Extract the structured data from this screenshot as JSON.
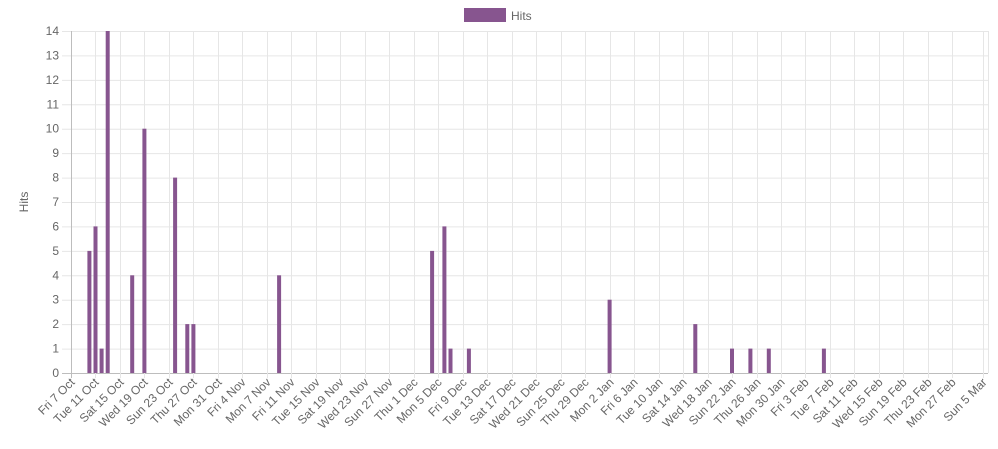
{
  "chart_data": {
    "type": "bar",
    "title": "",
    "xlabel": "",
    "ylabel": "Hits",
    "ylim": [
      0,
      14
    ],
    "y_ticks": [
      0,
      1,
      2,
      3,
      4,
      5,
      6,
      7,
      8,
      9,
      10,
      11,
      12,
      13,
      14
    ],
    "grid": true,
    "legend": {
      "position": "top",
      "entries": [
        {
          "label": "Hits",
          "color": "#87558f"
        }
      ]
    },
    "x_range": [
      "2022-10-07",
      "2023-03-05"
    ],
    "x_tick_labels": [
      "Fri 7 Oct",
      "Tue 11 Oct",
      "Sat 15 Oct",
      "Wed 19 Oct",
      "Sun 23 Oct",
      "Thu 27 Oct",
      "Mon 31 Oct",
      "Fri 4 Nov",
      "Mon 7 Nov",
      "Fri 11 Nov",
      "Tue 15 Nov",
      "Sat 19 Nov",
      "Wed 23 Nov",
      "Sun 27 Nov",
      "Thu 1 Dec",
      "Mon 5 Dec",
      "Fri 9 Dec",
      "Tue 13 Dec",
      "Sat 17 Dec",
      "Wed 21 Dec",
      "Sun 25 Dec",
      "Thu 29 Dec",
      "Mon 2 Jan",
      "Fri 6 Jan",
      "Tue 10 Jan",
      "Sat 14 Jan",
      "Wed 18 Jan",
      "Sun 22 Jan",
      "Thu 26 Jan",
      "Mon 30 Jan",
      "Fri 3 Feb",
      "Tue 7 Feb",
      "Sat 11 Feb",
      "Wed 15 Feb",
      "Sun 19 Feb",
      "Thu 23 Feb",
      "Mon 27 Feb",
      "Sun 5 Mar"
    ],
    "series": [
      {
        "name": "Hits",
        "color": "#87558f",
        "points": [
          {
            "x": "2022-10-10",
            "y": 5
          },
          {
            "x": "2022-10-11",
            "y": 6
          },
          {
            "x": "2022-10-12",
            "y": 1
          },
          {
            "x": "2022-10-13",
            "y": 14
          },
          {
            "x": "2022-10-17",
            "y": 4
          },
          {
            "x": "2022-10-19",
            "y": 10
          },
          {
            "x": "2022-10-24",
            "y": 8
          },
          {
            "x": "2022-10-26",
            "y": 2
          },
          {
            "x": "2022-10-27",
            "y": 2
          },
          {
            "x": "2022-11-10",
            "y": 4
          },
          {
            "x": "2022-12-05",
            "y": 5
          },
          {
            "x": "2022-12-07",
            "y": 6
          },
          {
            "x": "2022-12-08",
            "y": 1
          },
          {
            "x": "2022-12-11",
            "y": 1
          },
          {
            "x": "2023-01-03",
            "y": 3
          },
          {
            "x": "2023-01-17",
            "y": 2
          },
          {
            "x": "2023-01-23",
            "y": 1
          },
          {
            "x": "2023-01-26",
            "y": 1
          },
          {
            "x": "2023-01-29",
            "y": 1
          },
          {
            "x": "2023-02-07",
            "y": 1
          }
        ]
      }
    ]
  }
}
